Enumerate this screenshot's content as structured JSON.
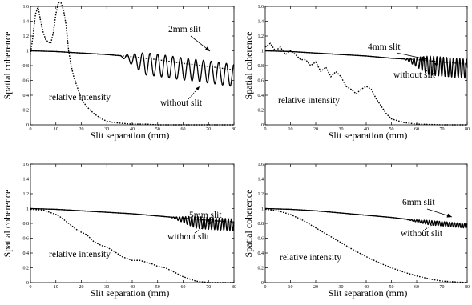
{
  "chart_data": [
    {
      "type": "line",
      "xlabel": "Slit separation (mm)",
      "ylabel": "Spatial coherence",
      "xlim": [
        0,
        80
      ],
      "ylim": [
        0,
        1.6
      ],
      "xticks": [
        "0",
        "10",
        "20",
        "30",
        "40",
        "50",
        "60",
        "70",
        "80"
      ],
      "yticks": [
        "0",
        "0.2",
        "0.4",
        "0.6",
        "0.8",
        "1",
        "1.2",
        "1.4",
        "1.6"
      ],
      "annotations": {
        "slit": "2mm slit",
        "without": "without slit",
        "intensity": "relative intensity"
      },
      "series": [
        {
          "style": "solid",
          "osc_start": 35,
          "osc_amp": 0.15,
          "osc_period": 3.0,
          "x": [
            0,
            10,
            20,
            30,
            40,
            50,
            60,
            70,
            80
          ],
          "values": [
            1.0,
            0.99,
            0.97,
            0.95,
            0.92,
            0.88,
            0.83,
            0.79,
            0.74
          ]
        },
        {
          "style": "dotted-envelope",
          "x": [
            0,
            10,
            20,
            30,
            40,
            50,
            60,
            70,
            80
          ],
          "values": [
            1.0,
            0.99,
            0.97,
            0.95,
            0.92,
            0.88,
            0.83,
            0.79,
            0.74
          ]
        },
        {
          "style": "dotted",
          "x": [
            0,
            1,
            2,
            3,
            4,
            5,
            6,
            7,
            8,
            9,
            10,
            11,
            12,
            13,
            14,
            15,
            16,
            17,
            18,
            19,
            20,
            22,
            25,
            28,
            30,
            33,
            36,
            40,
            45,
            50,
            60,
            70,
            80
          ],
          "values": [
            0.95,
            1.2,
            1.5,
            1.6,
            1.4,
            1.25,
            1.15,
            1.12,
            1.1,
            1.25,
            1.5,
            1.65,
            1.65,
            1.55,
            1.35,
            1.0,
            0.8,
            0.65,
            0.55,
            0.45,
            0.35,
            0.25,
            0.15,
            0.08,
            0.05,
            0.03,
            0.02,
            0.01,
            0.01,
            0.0,
            0.0,
            0.0,
            0.0
          ]
        }
      ]
    },
    {
      "type": "line",
      "xlabel": "Slit separation (mm)",
      "ylabel": "Spatial coherence",
      "xlim": [
        0,
        80
      ],
      "ylim": [
        0,
        1.6
      ],
      "xticks": [
        "0",
        "10",
        "20",
        "30",
        "40",
        "50",
        "60",
        "70",
        "80"
      ],
      "yticks": [
        "0",
        "0.2",
        "0.4",
        "0.6",
        "0.8",
        "1",
        "1.2",
        "1.4",
        "1.6"
      ],
      "annotations": {
        "slit": "4mm slit",
        "without": "without slit",
        "intensity": "relative intensity"
      },
      "series": [
        {
          "style": "solid",
          "osc_start": 55,
          "osc_amp": 0.13,
          "osc_period": 1.3,
          "x": [
            0,
            10,
            20,
            30,
            40,
            50,
            60,
            70,
            80
          ],
          "values": [
            1.0,
            0.99,
            0.97,
            0.95,
            0.93,
            0.9,
            0.88,
            0.85,
            0.82
          ]
        },
        {
          "style": "dotted-envelope",
          "x": [
            0,
            10,
            20,
            30,
            40,
            50,
            60,
            70,
            80
          ],
          "values": [
            1.0,
            0.99,
            0.97,
            0.95,
            0.93,
            0.9,
            0.88,
            0.85,
            0.82
          ]
        },
        {
          "style": "dotted",
          "x": [
            0,
            2,
            4,
            6,
            8,
            10,
            12,
            14,
            16,
            18,
            20,
            22,
            24,
            26,
            28,
            30,
            32,
            34,
            36,
            38,
            40,
            42,
            44,
            46,
            48,
            50,
            55,
            60,
            70,
            80
          ],
          "values": [
            1.05,
            1.1,
            1.0,
            1.05,
            0.95,
            1.0,
            0.95,
            0.88,
            0.88,
            0.8,
            0.85,
            0.72,
            0.78,
            0.65,
            0.72,
            0.65,
            0.52,
            0.48,
            0.42,
            0.48,
            0.52,
            0.48,
            0.35,
            0.25,
            0.15,
            0.08,
            0.03,
            0.01,
            0.0,
            0.0
          ]
        }
      ]
    },
    {
      "type": "line",
      "xlabel": "Slit separation (mm)",
      "ylabel": "Spatial coherence",
      "xlim": [
        0,
        80
      ],
      "ylim": [
        0,
        1.6
      ],
      "xticks": [
        "0",
        "10",
        "20",
        "30",
        "40",
        "50",
        "60",
        "70",
        "80"
      ],
      "yticks": [
        "0",
        "0.2",
        "0.4",
        "0.6",
        "0.8",
        "1",
        "1.2",
        "1.4",
        "1.6"
      ],
      "annotations": {
        "slit": "5mm slit",
        "without": "without slit",
        "intensity": "relative intensity"
      },
      "series": [
        {
          "style": "solid",
          "osc_start": 55,
          "osc_amp": 0.08,
          "osc_period": 1.2,
          "x": [
            0,
            10,
            20,
            30,
            40,
            50,
            60,
            70,
            80
          ],
          "values": [
            1.0,
            0.99,
            0.97,
            0.95,
            0.93,
            0.9,
            0.87,
            0.84,
            0.82
          ]
        },
        {
          "style": "dotted-envelope",
          "x": [
            0,
            10,
            20,
            30,
            40,
            50,
            60,
            70,
            80
          ],
          "values": [
            1.0,
            0.99,
            0.97,
            0.95,
            0.93,
            0.9,
            0.87,
            0.84,
            0.82
          ]
        },
        {
          "style": "dotted",
          "x": [
            0,
            5,
            10,
            12,
            15,
            18,
            20,
            22,
            25,
            28,
            30,
            33,
            36,
            40,
            43,
            45,
            48,
            50,
            53,
            56,
            60,
            65,
            70,
            80
          ],
          "values": [
            0.99,
            0.98,
            0.92,
            0.88,
            0.8,
            0.72,
            0.68,
            0.65,
            0.55,
            0.5,
            0.48,
            0.42,
            0.35,
            0.3,
            0.3,
            0.28,
            0.25,
            0.22,
            0.2,
            0.15,
            0.08,
            0.02,
            0.0,
            0.0
          ]
        }
      ]
    },
    {
      "type": "line",
      "xlabel": "Slit separation (mm)",
      "ylabel": "Spatial coherence",
      "xlim": [
        0,
        80
      ],
      "ylim": [
        0,
        1.6
      ],
      "xticks": [
        "0",
        "10",
        "20",
        "30",
        "40",
        "50",
        "60",
        "70",
        "80"
      ],
      "yticks": [
        "0",
        "0.2",
        "0.4",
        "0.6",
        "0.8",
        "1",
        "1.2",
        "1.4",
        "1.6"
      ],
      "annotations": {
        "slit": "6mm slit",
        "without": "without slit",
        "intensity": "relative intensity"
      },
      "series": [
        {
          "style": "solid",
          "osc_start": 55,
          "osc_amp": 0.03,
          "osc_period": 1.0,
          "x": [
            0,
            10,
            20,
            30,
            40,
            50,
            60,
            70,
            80
          ],
          "values": [
            1.0,
            0.99,
            0.97,
            0.94,
            0.91,
            0.88,
            0.84,
            0.81,
            0.78
          ]
        },
        {
          "style": "dotted-envelope",
          "x": [
            0,
            10,
            20,
            30,
            40,
            50,
            60,
            70,
            80
          ],
          "values": [
            1.0,
            0.99,
            0.97,
            0.94,
            0.91,
            0.88,
            0.84,
            0.81,
            0.78
          ]
        },
        {
          "style": "dotted",
          "x": [
            0,
            5,
            10,
            15,
            20,
            25,
            30,
            35,
            40,
            45,
            50,
            55,
            60,
            65,
            70,
            75,
            80
          ],
          "values": [
            0.99,
            0.97,
            0.92,
            0.84,
            0.74,
            0.64,
            0.54,
            0.44,
            0.35,
            0.27,
            0.2,
            0.14,
            0.09,
            0.05,
            0.02,
            0.01,
            0.0
          ]
        }
      ]
    }
  ]
}
